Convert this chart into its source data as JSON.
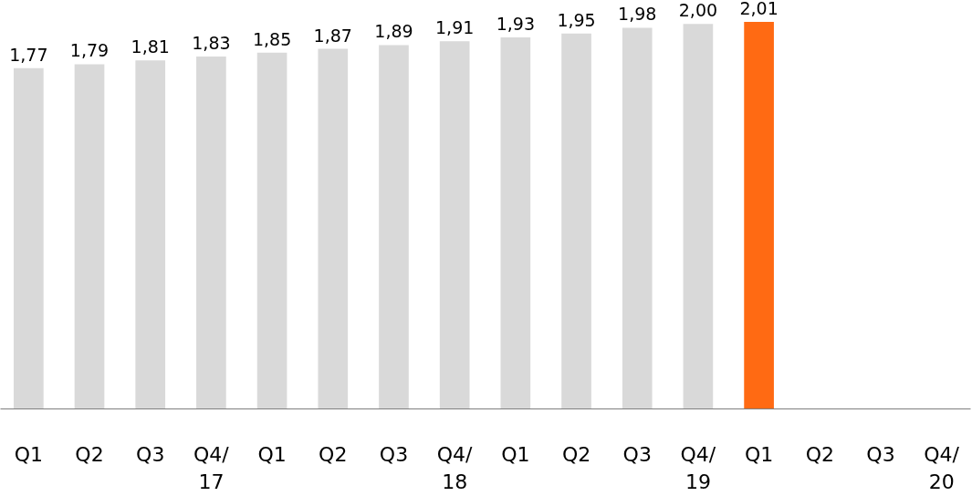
{
  "chart_data": {
    "type": "bar",
    "categories": [
      "Q1",
      "Q2",
      "Q3",
      "Q4/\n17",
      "Q1",
      "Q2",
      "Q3",
      "Q4/\n18",
      "Q1",
      "Q2",
      "Q3",
      "Q4/\n19",
      "Q1",
      "Q2",
      "Q3",
      "Q4/\n20"
    ],
    "values": [
      1.77,
      1.79,
      1.81,
      1.83,
      1.85,
      1.87,
      1.89,
      1.91,
      1.93,
      1.95,
      1.98,
      2.0,
      2.01,
      null,
      null,
      null
    ],
    "colors": [
      "#d9d9d9",
      "#d9d9d9",
      "#d9d9d9",
      "#d9d9d9",
      "#d9d9d9",
      "#d9d9d9",
      "#d9d9d9",
      "#d9d9d9",
      "#d9d9d9",
      "#d9d9d9",
      "#d9d9d9",
      "#d9d9d9",
      "#ff6a13",
      "#d9d9d9",
      "#d9d9d9",
      "#d9d9d9"
    ],
    "value_labels": [
      "1,77",
      "1,79",
      "1,81",
      "1,83",
      "1,85",
      "1,87",
      "1,89",
      "1,91",
      "1,93",
      "1,95",
      "1,98",
      "2,00",
      "2,01",
      null,
      null,
      null
    ],
    "grid": false
  }
}
